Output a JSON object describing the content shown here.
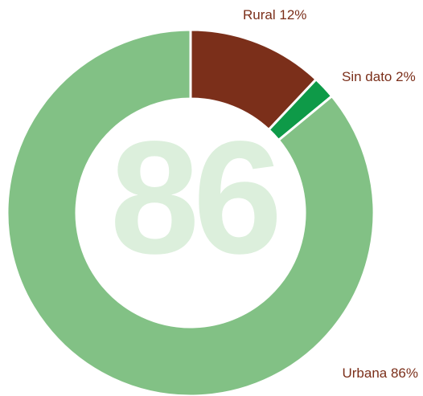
{
  "chart_data": {
    "type": "donut",
    "categories": [
      "Rural",
      "Sin dato",
      "Urbana"
    ],
    "values": [
      12,
      2,
      86
    ],
    "value_labels": [
      "12%",
      "2%",
      "86%"
    ],
    "colors": [
      "#7b2f1a",
      "#0e9a48",
      "#82c185"
    ],
    "center_label": "86"
  }
}
